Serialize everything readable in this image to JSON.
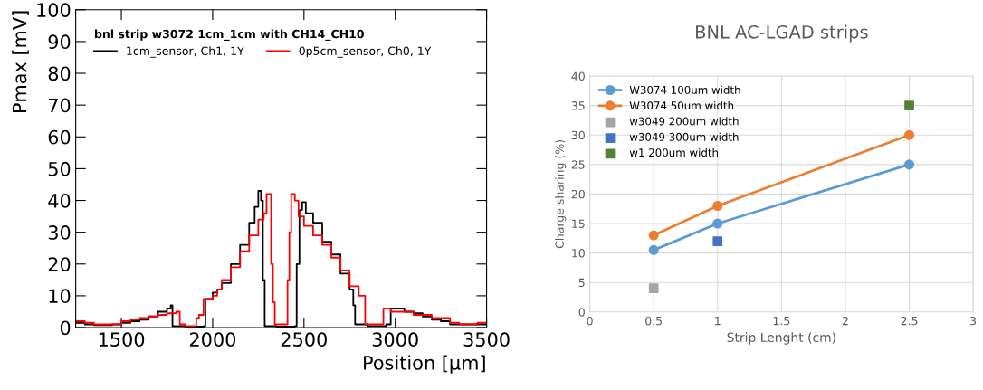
{
  "chart_data": [
    {
      "type": "step",
      "xlabel": "Position [µm]",
      "ylabel": "Pmax [mV]",
      "legend_title": "bnl strip w3072 1cm_1cm with CH14_CH10",
      "legend": "top left",
      "grid": false,
      "xlim": [
        1250,
        3500
      ],
      "xticks": [
        1500,
        2000,
        2500,
        3000,
        3500
      ],
      "ylim": [
        0,
        100
      ],
      "yticks": [
        0,
        10,
        20,
        30,
        40,
        50,
        60,
        70,
        80,
        90,
        100
      ],
      "series": [
        {
          "name": "1cm_sensor, Ch1, 1Y",
          "color": "#000000",
          "x": [
            1250,
            1300,
            1350,
            1400,
            1450,
            1500,
            1550,
            1600,
            1650,
            1700,
            1750,
            1770,
            1780,
            1850,
            1900,
            1950,
            1960,
            2000,
            2025,
            2050,
            2100,
            2150,
            2200,
            2230,
            2250,
            2265,
            2275,
            2285,
            2350,
            2400,
            2450,
            2460,
            2475,
            2490,
            2510,
            2550,
            2600,
            2650,
            2700,
            2750,
            2770,
            2780,
            2850,
            2900,
            2950,
            2975,
            3000,
            3050,
            3100,
            3150,
            3200,
            3250,
            3300,
            3400,
            3500
          ],
          "values": [
            1.5,
            1,
            0.8,
            0.8,
            1,
            1.5,
            2,
            2.5,
            3.5,
            5,
            6,
            7,
            0.5,
            0.3,
            0.3,
            0.5,
            9,
            11,
            12,
            14,
            20,
            26,
            33,
            38,
            43,
            40,
            15,
            0.5,
            0.3,
            0.3,
            0.5,
            20,
            37,
            39.5,
            36,
            33,
            27,
            23,
            17,
            12,
            7,
            1,
            0.5,
            0.5,
            1,
            6,
            6,
            5,
            4.5,
            3.5,
            2.5,
            2,
            1,
            1,
            1
          ]
        },
        {
          "name": "0p5cm_sensor, Ch0, 1Y",
          "color": "#ff0000",
          "x": [
            1250,
            1300,
            1350,
            1400,
            1450,
            1500,
            1550,
            1600,
            1650,
            1700,
            1750,
            1800,
            1820,
            1850,
            1910,
            1925,
            1950,
            2000,
            2025,
            2050,
            2100,
            2150,
            2200,
            2250,
            2280,
            2295,
            2320,
            2330,
            2340,
            2400,
            2410,
            2420,
            2430,
            2450,
            2470,
            2500,
            2550,
            2600,
            2650,
            2700,
            2750,
            2800,
            2835,
            2900,
            2935,
            2975,
            3000,
            3100,
            3200,
            3300,
            3350,
            3400,
            3450,
            3500
          ],
          "values": [
            2,
            1.5,
            1,
            1,
            1,
            2,
            2.5,
            3,
            3.5,
            4,
            4.5,
            5,
            1,
            0.5,
            3,
            4,
            9,
            10,
            12,
            15,
            19,
            24,
            29,
            34,
            36,
            42,
            20,
            8,
            1,
            1,
            15,
            30,
            42,
            40,
            35,
            32,
            29,
            26,
            22,
            18,
            13,
            10,
            1,
            1,
            6,
            5,
            5,
            4,
            3,
            1.5,
            1,
            1,
            1.5,
            1.5
          ]
        }
      ]
    },
    {
      "type": "line",
      "title": "BNL AC-LGAD strips",
      "xlabel": "Strip Lenght (cm)",
      "ylabel": "Charge sharing (%)",
      "legend": "top left",
      "grid": true,
      "marker": "circle",
      "xlim": [
        0,
        3
      ],
      "xticks": [
        0,
        0.5,
        1,
        1.5,
        2,
        2.5,
        3
      ],
      "ylim": [
        0,
        40
      ],
      "yticks": [
        0,
        5,
        10,
        15,
        20,
        25,
        30,
        35,
        40
      ],
      "series": [
        {
          "name": "W3074 100um width",
          "color": "#5b9bd5",
          "x": [
            0.5,
            1,
            2.5
          ],
          "values": [
            10.5,
            15,
            25
          ]
        },
        {
          "name": "W3074 50um width",
          "color": "#ed7d31",
          "x": [
            0.5,
            1,
            2.5
          ],
          "values": [
            13,
            18,
            30
          ]
        },
        {
          "name": "w3049 200um width",
          "type": "scatter",
          "marker": "square",
          "color": "#a5a5a5",
          "x": [
            0.5
          ],
          "values": [
            4
          ]
        },
        {
          "name": "w3049 300um width",
          "type": "scatter",
          "marker": "square",
          "color": "#4472c4",
          "x": [
            1
          ],
          "values": [
            12
          ]
        },
        {
          "name": "w1 200um width",
          "type": "scatter",
          "marker": "square",
          "color": "#548235",
          "x": [
            2.5
          ],
          "values": [
            35
          ]
        }
      ]
    }
  ]
}
